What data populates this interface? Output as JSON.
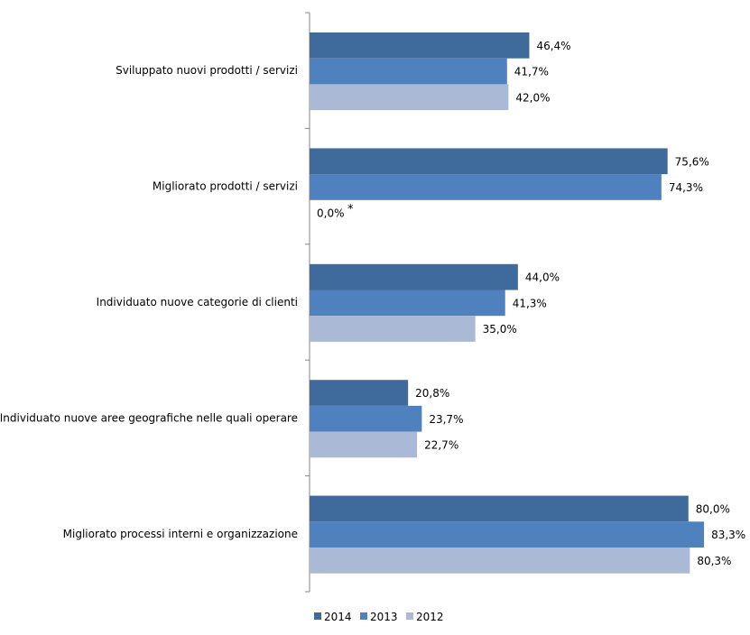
{
  "chart_data": {
    "type": "bar",
    "orientation": "horizontal",
    "categories": [
      "Sviluppato nuovi prodotti / servizi",
      "Migliorato prodotti / servizi",
      "Individuato nuove categorie di clienti",
      "Individuato nuove aree geografiche nelle quali operare",
      "Migliorato processi interni e organizzazione"
    ],
    "series": [
      {
        "name": "2014",
        "color": "#3F6A9C",
        "values": [
          46.4,
          75.6,
          44.0,
          20.8,
          80.0
        ],
        "labels": [
          "46,4%",
          "75,6%",
          "44,0%",
          "20,8%",
          "80,0%"
        ]
      },
      {
        "name": "2013",
        "color": "#4E81BD",
        "values": [
          41.7,
          74.3,
          41.3,
          23.7,
          83.3
        ],
        "labels": [
          "41,7%",
          "74,3%",
          "41,3%",
          "23,7%",
          "83,3%"
        ]
      },
      {
        "name": "2012",
        "color": "#AAB9D6",
        "values": [
          42.0,
          0.0,
          35.0,
          22.7,
          80.3
        ],
        "labels": [
          "42,0%",
          "0,0%",
          "35,0%",
          "22,7%",
          "80,3%"
        ],
        "annotations": [
          "",
          "*",
          "",
          "",
          ""
        ]
      }
    ],
    "xlim": [
      0,
      92
    ],
    "legend_position": "bottom",
    "grid": false,
    "title": "",
    "xlabel": "",
    "ylabel": ""
  }
}
